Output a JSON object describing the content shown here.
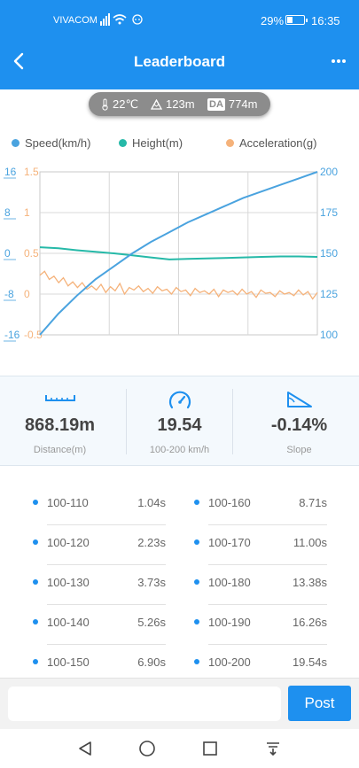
{
  "status_bar": {
    "carrier": "VIVACOM",
    "battery_percent": "29%",
    "battery_level": 0.29,
    "time": "16:35"
  },
  "header": {
    "title": "Leaderboard"
  },
  "conditions": {
    "temperature": "22℃",
    "altitude": "123m",
    "da_label": "DA",
    "density_altitude": "774m"
  },
  "legend": [
    {
      "label": "Speed(km/h)",
      "color": "#4aa3df"
    },
    {
      "label": "Height(m)",
      "color": "#26b9a8"
    },
    {
      "label": "Acceleration(g)",
      "color": "#f5b27a"
    }
  ],
  "chart_data": {
    "type": "line",
    "title": "",
    "left_axis_height": {
      "ticks": [
        "16",
        "8",
        "0",
        "-8",
        "-16"
      ],
      "color": "#4aa3df",
      "range": [
        -16,
        16
      ]
    },
    "left_axis_accel": {
      "ticks": [
        "1.5",
        "1",
        "0.5",
        "0",
        "-0.5"
      ],
      "color": "#f5b27a",
      "range": [
        -0.5,
        1.5
      ]
    },
    "right_axis_speed": {
      "ticks": [
        "200",
        "175",
        "150",
        "125",
        "100"
      ],
      "color": "#4aa3df",
      "range": [
        100,
        200
      ]
    },
    "grid": true,
    "series": [
      {
        "name": "Speed(km/h)",
        "axis": "right",
        "color": "#4aa3df",
        "values": [
          100,
          113,
          124,
          134,
          142,
          150,
          157,
          163,
          169,
          174,
          179,
          184,
          188,
          192,
          196,
          200
        ]
      },
      {
        "name": "Height(m)",
        "axis": "left_height",
        "color": "#26b9a8",
        "values": [
          1.2,
          1.0,
          0.6,
          0.3,
          0.0,
          -0.4,
          -0.8,
          -1.2,
          -1.1,
          -1.0,
          -0.9,
          -0.8,
          -0.7,
          -0.6,
          -0.6,
          -0.7
        ]
      },
      {
        "name": "Acceleration(g)",
        "axis": "left_accel",
        "color": "#f5b27a",
        "values": [
          0.23,
          0.28,
          0.18,
          0.22,
          0.14,
          0.2,
          0.1,
          0.15,
          0.08,
          0.14,
          0.06,
          0.1,
          0.05,
          0.12,
          0.02,
          0.09,
          0.04,
          0.13,
          0.0,
          0.08,
          0.05,
          0.1,
          0.03,
          0.07,
          0.01,
          0.09,
          0.04,
          0.06,
          0.0,
          0.08,
          0.03,
          0.05,
          -0.02,
          0.07,
          0.02,
          0.04,
          0.0,
          0.06,
          -0.03,
          0.05,
          0.02,
          0.04,
          -0.01,
          0.06,
          0.0,
          0.03,
          -0.04,
          0.05,
          0.01,
          0.02,
          -0.03,
          0.04,
          0.0,
          0.02,
          -0.02,
          0.05,
          -0.01,
          0.03,
          -0.06,
          0.02
        ]
      }
    ]
  },
  "stats": [
    {
      "value": "868.19m",
      "label": "Distance(m)",
      "icon": "ruler-icon"
    },
    {
      "value": "19.54",
      "label": "100-200 km/h",
      "icon": "speedometer-icon"
    },
    {
      "value": "-0.14%",
      "label": "Slope",
      "icon": "slope-icon"
    }
  ],
  "splits": [
    {
      "range": "100-110",
      "time": "1.04s"
    },
    {
      "range": "100-120",
      "time": "2.23s"
    },
    {
      "range": "100-130",
      "time": "3.73s"
    },
    {
      "range": "100-140",
      "time": "5.26s"
    },
    {
      "range": "100-150",
      "time": "6.90s"
    },
    {
      "range": "100-160",
      "time": "8.71s"
    },
    {
      "range": "100-170",
      "time": "11.00s"
    },
    {
      "range": "100-180",
      "time": "13.38s"
    },
    {
      "range": "100-190",
      "time": "16.26s"
    },
    {
      "range": "100-200",
      "time": "19.54s"
    }
  ],
  "post": {
    "placeholder": "",
    "button_label": "Post"
  },
  "colors": {
    "accent": "#1e90ef"
  }
}
